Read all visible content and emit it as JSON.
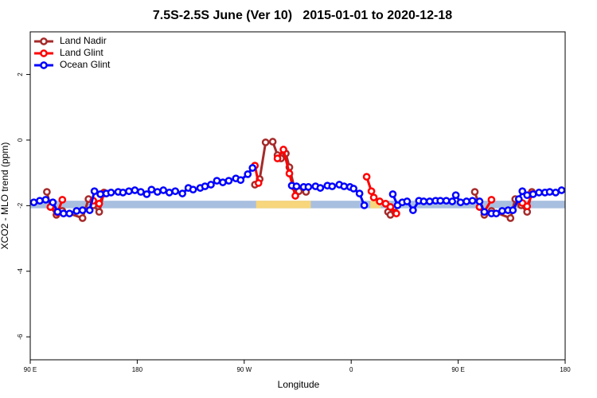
{
  "chart_data": {
    "type": "line",
    "title": "7.5S-2.5S June (Ver 10)   2015-01-01 to 2020-12-18",
    "x_label": "Longitude",
    "y_label": "XCO2 - MLO trend (ppm)",
    "xlim": [
      90,
      540
    ],
    "ylim": [
      -6.7,
      3.3
    ],
    "xticks": [
      {
        "value": 90,
        "label": "90 E"
      },
      180,
      {
        "value": 270,
        "label": "90 W"
      },
      {
        "value": 360,
        "label": "0"
      },
      {
        "value": 450,
        "label": "90 E"
      },
      {
        "value": 540,
        "label": "180"
      }
    ],
    "yticks": [
      2,
      0,
      -2,
      -4,
      -6
    ],
    "legend": "top-left",
    "bands": [
      {
        "color": "#a9bfe0",
        "xlim": [
          90,
          540
        ],
        "ylim": [
          -2.08,
          -1.85
        ]
      },
      {
        "color": "#f7d67c",
        "xlim": [
          280,
          326
        ],
        "ylim": [
          -2.08,
          -1.85
        ]
      },
      {
        "color": "#f7d67c",
        "xlim": [
          376,
          385
        ],
        "ylim": [
          -2.08,
          -1.85
        ]
      }
    ],
    "series": [
      {
        "name": "Land Nadir",
        "color": "#a52a2a",
        "x": [
          104,
          107,
          112,
          117,
          134,
          139,
          143,
          148,
          152,
          230,
          279,
          283,
          288,
          294,
          298,
          301,
          305,
          308,
          312,
          316,
          322,
          400,
          391,
          393,
          397,
          430,
          464,
          468,
          472,
          478,
          494,
          498,
          503,
          508,
          512
        ],
        "values": [
          -1.58,
          -2.04,
          -2.28,
          -2.16,
          -2.38,
          -1.8,
          -1.99,
          -2.19,
          -1.6,
          null,
          -1.36,
          -1.19,
          -0.07,
          -0.05,
          -0.46,
          -0.56,
          -0.41,
          -0.83,
          -1.43,
          -1.56,
          -1.58,
          null,
          -2.19,
          -2.28,
          -2.21,
          null,
          -1.58,
          -2.04,
          -2.28,
          -2.16,
          -2.38,
          -1.8,
          -1.99,
          -2.19,
          -1.58
        ]
      },
      {
        "name": "Land Glint",
        "color": "#ff0000",
        "x": [
          107,
          113,
          117,
          130,
          143,
          148,
          152,
          230,
          279,
          282,
          285,
          298,
          303,
          308,
          313,
          340,
          373,
          377,
          379,
          384,
          389,
          393,
          398,
          430,
          468,
          472,
          478,
          490,
          504,
          508,
          512
        ],
        "values": [
          -2.04,
          -2.21,
          -1.82,
          null,
          -1.85,
          -1.94,
          -1.63,
          null,
          -0.78,
          -1.31,
          null,
          -0.56,
          -0.29,
          -1.02,
          -1.7,
          null,
          -1.12,
          -1.56,
          -1.75,
          -1.87,
          -1.94,
          -2.04,
          -2.24,
          null,
          -2.04,
          -2.19,
          -1.82,
          null,
          -1.92,
          -2.02,
          -1.65
        ]
      },
      {
        "name": "Ocean Glint",
        "color": "#0000ff",
        "x": [
          93,
          98,
          103,
          109,
          113,
          118,
          123,
          129,
          134,
          140,
          144,
          149,
          154,
          158,
          164,
          168,
          173,
          178,
          183,
          188,
          192,
          197,
          202,
          207,
          212,
          218,
          223,
          227,
          233,
          237,
          242,
          247,
          252,
          257,
          263,
          267,
          273,
          277,
          295,
          310,
          314,
          320,
          324,
          330,
          334,
          340,
          344,
          350,
          354,
          359,
          362,
          367,
          371,
          383,
          395,
          399,
          403,
          407,
          412,
          417,
          421,
          426,
          431,
          435,
          440,
          445,
          448,
          452,
          457,
          462,
          468,
          472,
          478,
          482,
          487,
          492,
          496,
          501,
          504,
          508,
          513,
          518,
          523,
          527,
          532,
          537
        ],
        "values": [
          -1.9,
          -1.85,
          -1.82,
          -1.9,
          -2.19,
          -2.24,
          -2.24,
          -2.16,
          -2.14,
          -2.14,
          -1.56,
          -1.65,
          -1.63,
          -1.6,
          -1.58,
          -1.6,
          -1.56,
          -1.53,
          -1.58,
          -1.65,
          -1.51,
          -1.58,
          -1.53,
          -1.6,
          -1.56,
          -1.63,
          -1.46,
          -1.51,
          -1.46,
          -1.41,
          -1.36,
          -1.24,
          -1.29,
          -1.24,
          -1.17,
          -1.22,
          -1.04,
          -0.85,
          null,
          -1.39,
          -1.41,
          -1.43,
          -1.43,
          -1.41,
          -1.46,
          -1.39,
          -1.41,
          -1.36,
          -1.41,
          -1.43,
          -1.48,
          -1.63,
          -1.99,
          null,
          -1.65,
          -1.99,
          -1.9,
          -1.87,
          -2.14,
          -1.85,
          -1.87,
          -1.87,
          -1.85,
          -1.85,
          -1.85,
          -1.87,
          -1.68,
          -1.9,
          -1.87,
          -1.85,
          -1.87,
          -2.19,
          -2.24,
          -2.24,
          -2.16,
          -2.14,
          -2.14,
          -1.8,
          -1.56,
          -1.68,
          -1.65,
          -1.6,
          -1.6,
          -1.58,
          -1.6,
          -1.53
        ]
      }
    ]
  }
}
